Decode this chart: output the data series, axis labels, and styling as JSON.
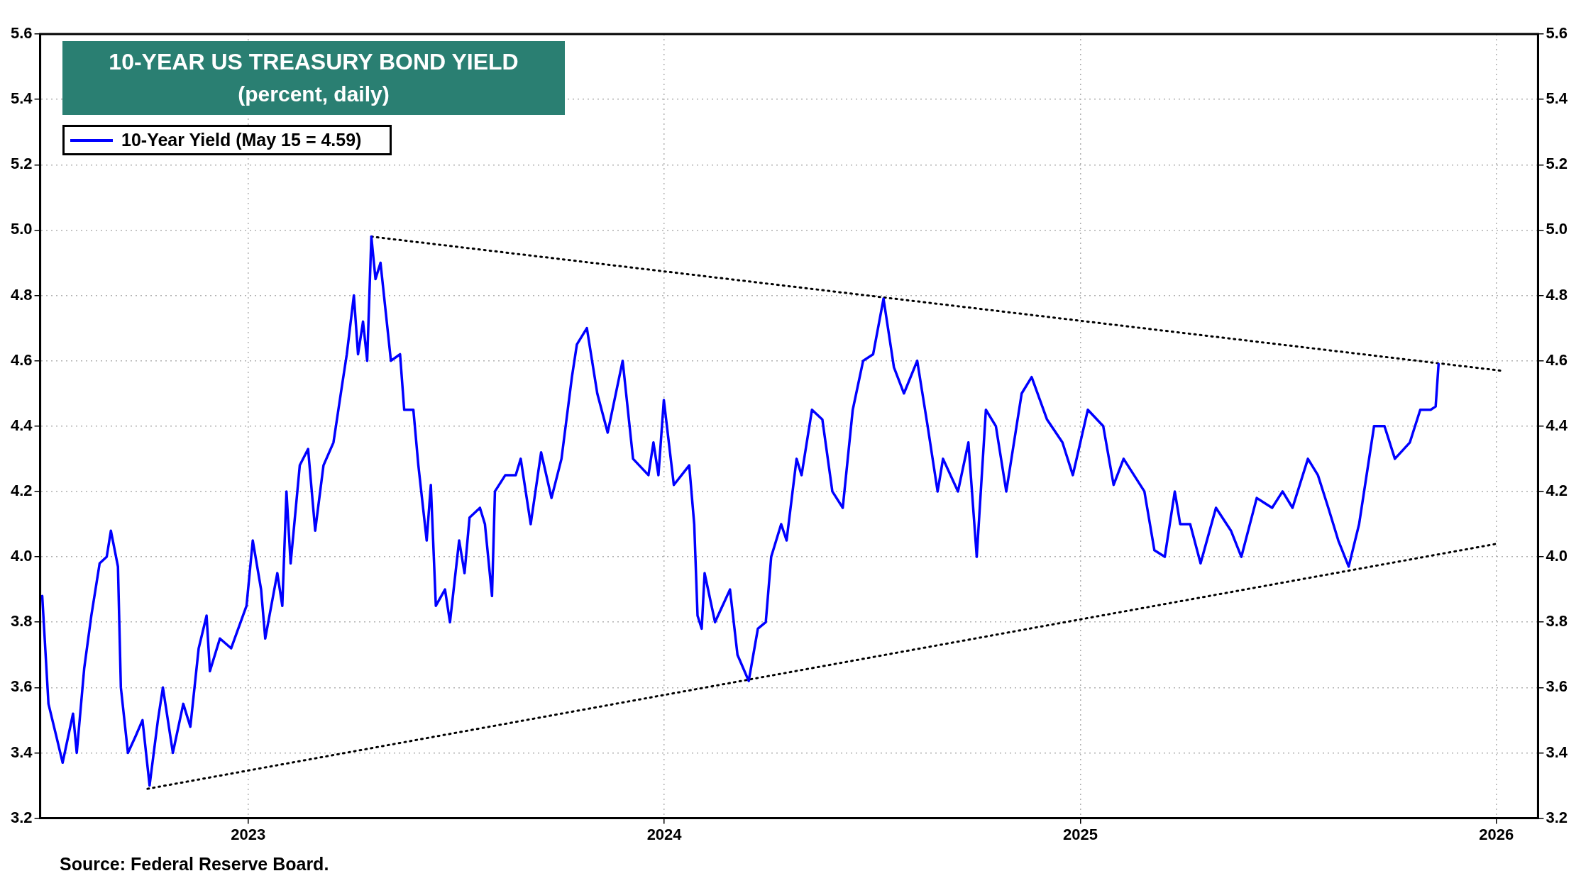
{
  "chart_data": {
    "type": "line",
    "title": "10-YEAR US TREASURY BOND YIELD",
    "subtitle": "(percent, daily)",
    "annotations": [
      "Source: Federal Reserve Board."
    ],
    "xlim": [
      2023,
      2026.6
    ],
    "xticks": [
      {
        "value": 2023.5,
        "label": "2023"
      },
      {
        "value": 2024.5,
        "label": "2024"
      },
      {
        "value": 2025.5,
        "label": "2025"
      },
      {
        "value": 2026.5,
        "label": "2026"
      }
    ],
    "ylim": [
      3.2,
      5.6
    ],
    "yticks": [
      3.2,
      3.4,
      3.6,
      3.8,
      {
        "value": 4,
        "label": "4.0"
      },
      4.2,
      4.4,
      4.6,
      4.8,
      {
        "value": 5,
        "label": "5.0"
      },
      5.2,
      5.4,
      5.6
    ],
    "y2lim": [
      3.2,
      5.6
    ],
    "y2ticks": [
      3.2,
      3.4,
      3.6,
      3.8,
      {
        "value": 4,
        "label": "4.0"
      },
      4.2,
      4.4,
      4.6,
      4.8,
      {
        "value": 5,
        "label": "5.0"
      },
      5.2,
      5.4,
      5.6
    ],
    "grid": true,
    "legend": "top left",
    "series": [
      {
        "name": "10-Year Yield (May 15 = 4.59)",
        "color": "#0000ff",
        "x": [
          2023.005,
          2023.02,
          2023.039,
          2023.054,
          2023.079,
          2023.088,
          2023.106,
          2023.123,
          2023.143,
          2023.16,
          2023.17,
          2023.187,
          2023.194,
          2023.211,
          2023.229,
          2023.246,
          2023.263,
          2023.283,
          2023.295,
          2023.319,
          2023.344,
          2023.361,
          2023.381,
          2023.4,
          2023.408,
          2023.432,
          2023.459,
          2023.496,
          2023.511,
          2023.531,
          2023.541,
          2023.57,
          2023.582,
          2023.592,
          2023.602,
          2023.624,
          2023.644,
          2023.661,
          2023.681,
          2023.705,
          2023.725,
          2023.737,
          2023.754,
          2023.764,
          2023.776,
          2023.786,
          2023.796,
          2023.806,
          2023.818,
          2023.843,
          2023.865,
          2023.875,
          2023.897,
          2023.909,
          2023.929,
          2023.939,
          2023.951,
          2023.973,
          2023.985,
          2024.007,
          2024.02,
          2024.032,
          2024.057,
          2024.069,
          2024.086,
          2024.093,
          2024.118,
          2024.143,
          2024.155,
          2024.179,
          2024.204,
          2024.229,
          2024.253,
          2024.278,
          2024.29,
          2024.314,
          2024.339,
          2024.364,
          2024.4,
          2024.425,
          2024.462,
          2024.474,
          2024.486,
          2024.499,
          2024.523,
          2024.56,
          2024.572,
          2024.58,
          2024.59,
          2024.597,
          2024.622,
          2024.658,
          2024.676,
          2024.703,
          2024.725,
          2024.744,
          2024.757,
          2024.781,
          2024.794,
          2024.818,
          2024.83,
          2024.855,
          2024.88,
          2024.904,
          2024.929,
          2024.953,
          2024.978,
          2025.002,
          2025.027,
          2025.052,
          2025.076,
          2025.108,
          2025.133,
          2025.157,
          2025.17,
          2025.206,
          2025.231,
          2025.251,
          2025.273,
          2025.297,
          2025.322,
          2025.359,
          2025.383,
          2025.42,
          2025.457,
          2025.482,
          2025.518,
          2025.555,
          2025.58,
          2025.604,
          2025.654,
          2025.678,
          2025.703,
          2025.727,
          2025.74,
          2025.764,
          2025.789,
          2025.826,
          2025.862,
          2025.887,
          2025.924,
          2025.961,
          2025.986,
          2026.01,
          2026.047,
          2026.071,
          2026.096,
          2026.12,
          2026.145,
          2026.17,
          2026.194,
          2026.206,
          2026.231,
          2026.256,
          2026.292,
          2026.317,
          2026.342,
          2026.354,
          2026.361
        ],
        "values": [
          3.88,
          3.55,
          3.45,
          3.37,
          3.52,
          3.4,
          3.66,
          3.82,
          3.98,
          4.0,
          4.08,
          3.97,
          3.6,
          3.4,
          3.45,
          3.5,
          3.3,
          3.5,
          3.6,
          3.4,
          3.55,
          3.48,
          3.72,
          3.82,
          3.65,
          3.75,
          3.72,
          3.85,
          4.05,
          3.9,
          3.75,
          3.95,
          3.85,
          4.2,
          3.98,
          4.28,
          4.33,
          4.08,
          4.28,
          4.35,
          4.52,
          4.62,
          4.8,
          4.62,
          4.72,
          4.6,
          4.98,
          4.85,
          4.9,
          4.6,
          4.62,
          4.45,
          4.45,
          4.28,
          4.05,
          4.22,
          3.85,
          3.9,
          3.8,
          4.05,
          3.95,
          4.12,
          4.15,
          4.1,
          3.88,
          4.2,
          4.25,
          4.25,
          4.3,
          4.1,
          4.32,
          4.18,
          4.3,
          4.55,
          4.65,
          4.7,
          4.5,
          4.38,
          4.6,
          4.3,
          4.25,
          4.35,
          4.25,
          4.48,
          4.22,
          4.28,
          4.1,
          3.82,
          3.78,
          3.95,
          3.8,
          3.9,
          3.7,
          3.62,
          3.78,
          3.8,
          4.0,
          4.1,
          4.05,
          4.3,
          4.25,
          4.45,
          4.42,
          4.2,
          4.15,
          4.45,
          4.6,
          4.62,
          4.79,
          4.58,
          4.5,
          4.6,
          4.4,
          4.2,
          4.3,
          4.2,
          4.35,
          4.0,
          4.45,
          4.4,
          4.2,
          4.5,
          4.55,
          4.42,
          4.35,
          4.25,
          4.45,
          4.4,
          4.22,
          4.3,
          4.2,
          4.02,
          4.0,
          4.2,
          4.1,
          4.1,
          3.98,
          4.15,
          4.08,
          4.0,
          4.18,
          4.15,
          4.2,
          4.15,
          4.3,
          4.25,
          4.15,
          4.05,
          3.97,
          4.1,
          4.3,
          4.4,
          4.4,
          4.3,
          4.35,
          4.45,
          4.45,
          4.46,
          4.59
        ]
      },
      {
        "color": "#000000",
        "line_style": "dotted",
        "x": [
          2023.796,
          2026.509
        ],
        "values": [
          4.98,
          4.57
        ]
      },
      {
        "color": "#000000",
        "line_style": "dotted",
        "x": [
          2023.258,
          2026.501
        ],
        "values": [
          3.29,
          4.04
        ]
      }
    ]
  }
}
